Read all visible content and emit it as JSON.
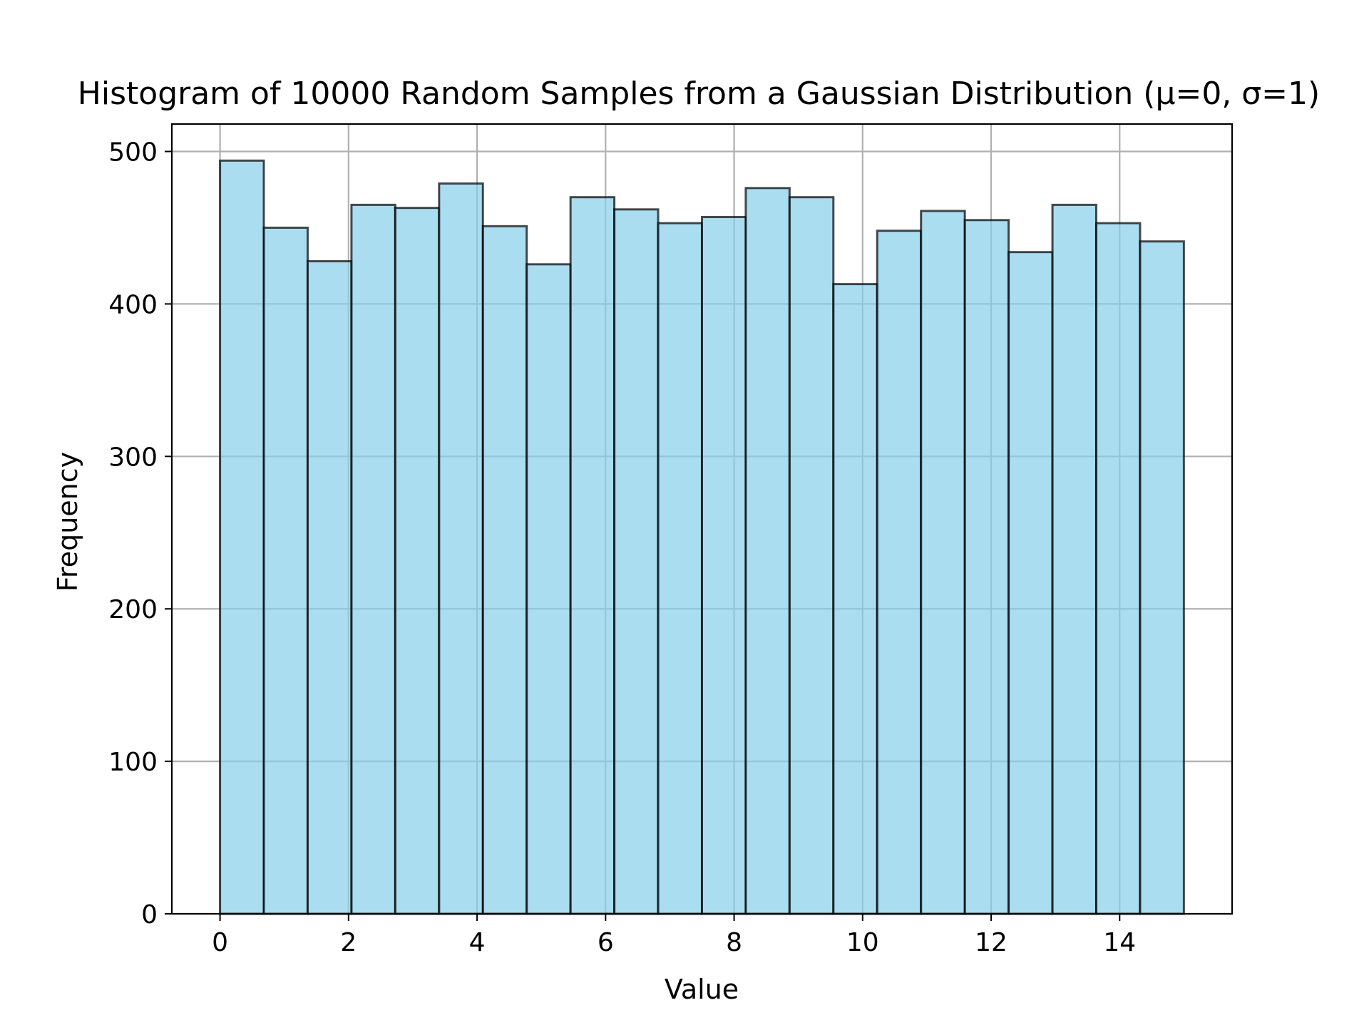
{
  "chart_data": {
    "type": "bar",
    "title": "Histogram of 10000 Random Samples from a Gaussian Distribution (μ=0, σ=1)",
    "xlabel": "Value",
    "ylabel": "Frequency",
    "bin_start": 0,
    "bin_width": 0.6818,
    "values": [
      494,
      450,
      428,
      465,
      463,
      479,
      451,
      426,
      470,
      462,
      453,
      457,
      476,
      470,
      413,
      448,
      461,
      455,
      434,
      465,
      453,
      441
    ],
    "xlim": [
      -0.75,
      15.75
    ],
    "ylim": [
      0,
      518
    ],
    "xticks": [
      0,
      2,
      4,
      6,
      8,
      10,
      12,
      14
    ],
    "yticks": [
      0,
      100,
      200,
      300,
      400,
      500
    ],
    "grid": true,
    "colors": {
      "bar_fill": "#87CEEB",
      "bar_alpha": 0.7,
      "bar_edge": "#000000",
      "grid": "#b0b0b0"
    }
  }
}
